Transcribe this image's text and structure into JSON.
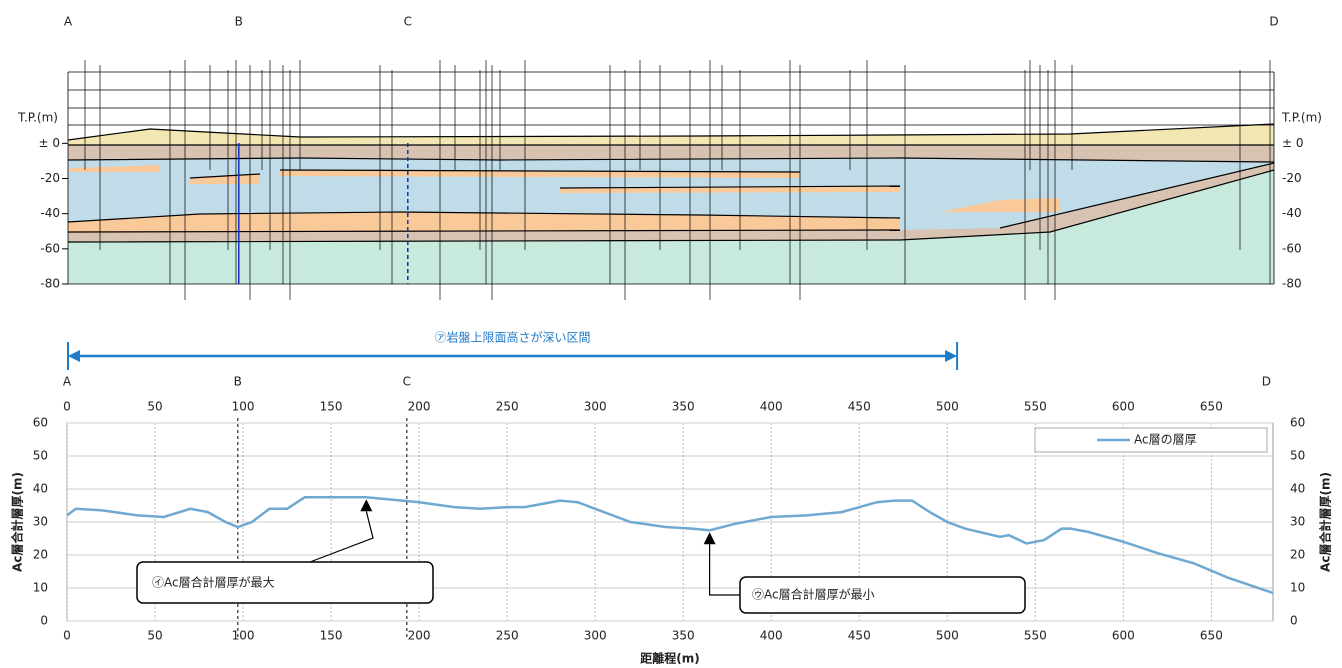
{
  "chart_data": [
    {
      "type": "section",
      "y_label": "T.P.(m)",
      "xlim": [
        0,
        685
      ],
      "ylim": [
        -80,
        40
      ],
      "yticks": [
        {
          "value": 0,
          "label": "± 0"
        },
        -20,
        -40,
        -60,
        -80
      ],
      "markers": {
        "labels": [
          "A",
          "B",
          "C",
          "D"
        ],
        "x": [
          0,
          97,
          193,
          685
        ]
      },
      "span": {
        "label": "㋐岩盤上限面高さが深い区間",
        "x": [
          0,
          505
        ],
        "color": "#1f7ac8"
      }
    },
    {
      "type": "line",
      "x_label": "距離程(m)",
      "y_label": "Ac層合計層厚(m)",
      "xlim": [
        0,
        685
      ],
      "xticks": [
        0,
        50,
        100,
        150,
        200,
        250,
        300,
        350,
        400,
        450,
        500,
        550,
        600,
        650
      ],
      "ylim": [
        0,
        60
      ],
      "yticks": [
        0,
        10,
        20,
        30,
        40,
        50,
        60
      ],
      "grid": true,
      "legend": "upper right",
      "x": [
        0,
        5,
        20,
        40,
        55,
        70,
        80,
        90,
        97,
        105,
        115,
        125,
        135,
        160,
        170,
        180,
        200,
        220,
        235,
        250,
        260,
        270,
        280,
        290,
        300,
        320,
        340,
        355,
        365,
        380,
        400,
        420,
        440,
        460,
        470,
        480,
        490,
        500,
        510,
        530,
        535,
        545,
        555,
        565,
        570,
        580,
        600,
        620,
        640,
        660,
        685
      ],
      "series": [
        {
          "name": "Ac層の層厚",
          "color": "#6fa8d0",
          "values": [
            32,
            34,
            33.5,
            32,
            31.5,
            34,
            33,
            30,
            28.5,
            30,
            34,
            34,
            37.5,
            37.5,
            37.5,
            37,
            36,
            34.5,
            34,
            34.5,
            34.5,
            35.5,
            36.5,
            36,
            34,
            30,
            28.5,
            28,
            27.5,
            29.5,
            31.5,
            32,
            33,
            36,
            36.5,
            36.5,
            33,
            30,
            28,
            25.5,
            26,
            23.5,
            24.5,
            28,
            28,
            27,
            24,
            20.5,
            17.5,
            13,
            8.5
          ]
        }
      ],
      "annotations": [
        {
          "text": "㋑Ac層合計層厚が最大",
          "x": 170,
          "y": 37.5
        },
        {
          "text": "㋒Ac層合計層厚が最小",
          "x": 365,
          "y": 27.5
        }
      ]
    }
  ]
}
